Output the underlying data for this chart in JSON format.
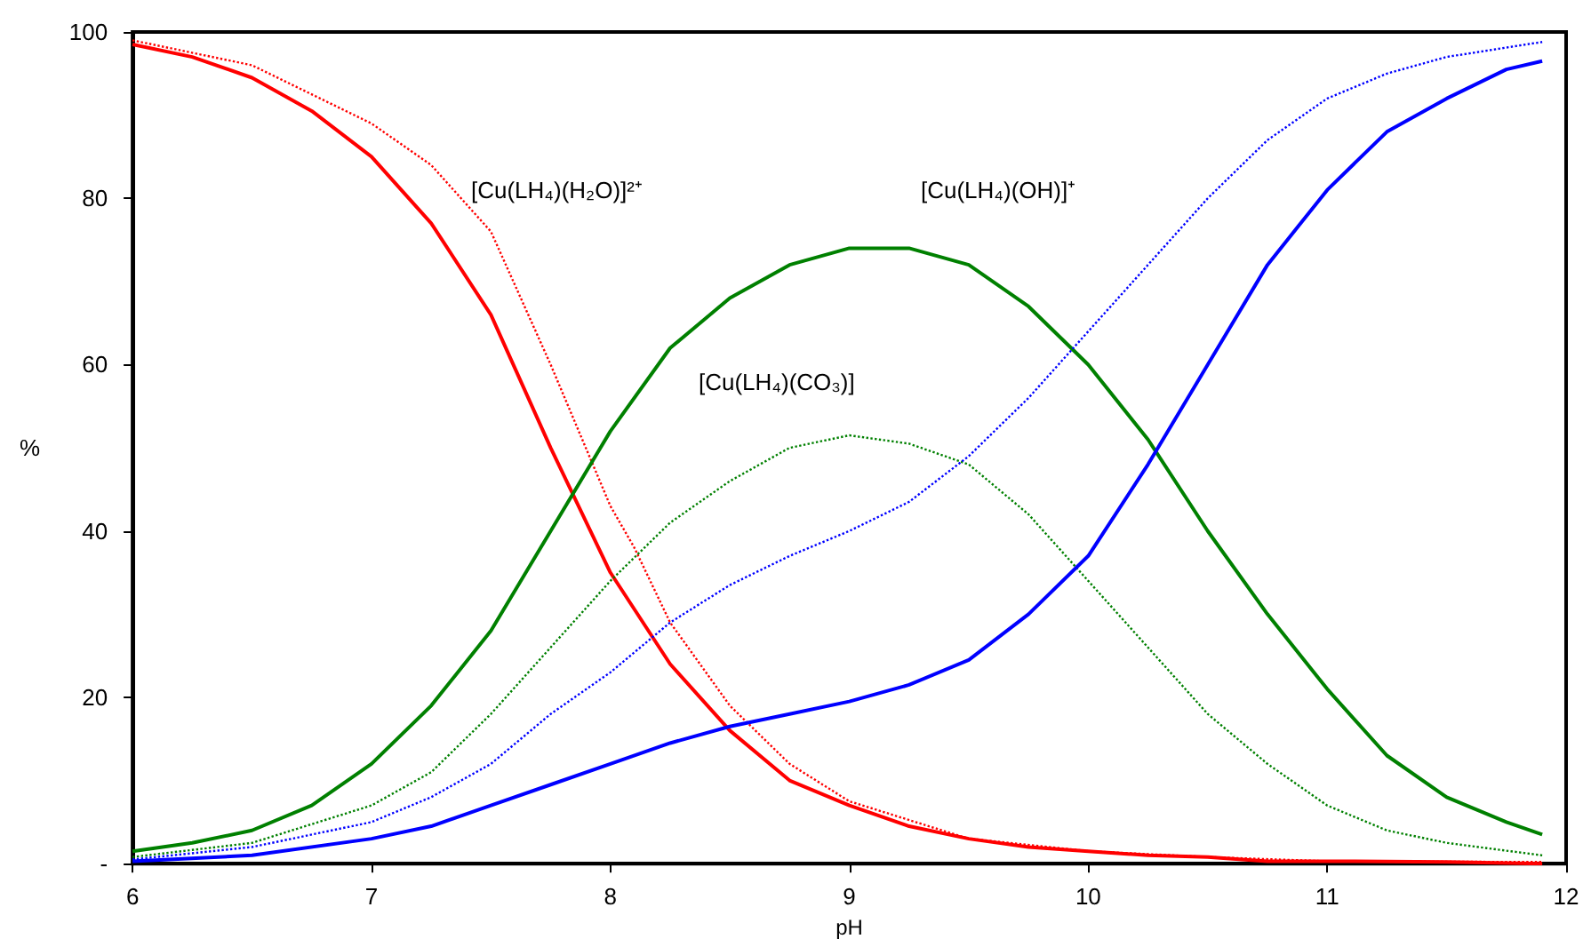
{
  "chart_data": {
    "type": "line",
    "xlabel": "pH",
    "ylabel": "%",
    "xlim": [
      6,
      12
    ],
    "xticks": [
      6,
      7,
      8,
      9,
      10,
      11,
      12
    ],
    "ylim": [
      0,
      100
    ],
    "yticks": [
      {
        "value": 0,
        "label": "-"
      },
      20,
      40,
      60,
      80,
      100
    ],
    "grid": false,
    "marker": "none",
    "series": [
      {
        "color": "#ff0000",
        "line_style": "solid",
        "x": [
          6,
          6.25,
          6.5,
          6.75,
          7,
          7.25,
          7.5,
          7.75,
          8,
          8.25,
          8.5,
          8.75,
          9,
          9.25,
          9.5,
          9.75,
          10,
          10.25,
          10.5,
          10.75,
          11,
          11.5,
          11.9
        ],
        "values": [
          98.5,
          97,
          94.5,
          90.5,
          85,
          77,
          66,
          50,
          35,
          24,
          16,
          10,
          7,
          4.5,
          3,
          2,
          1.5,
          1,
          0.8,
          0.3,
          0.3,
          0.2,
          0
        ]
      },
      {
        "color": "#ff0000",
        "line_style": "dotted",
        "x": [
          6,
          6.5,
          7,
          7.25,
          7.5,
          7.75,
          8,
          8.1,
          8.25,
          8.5,
          8.75,
          9,
          9.5,
          10,
          10.5,
          11,
          11.9
        ],
        "values": [
          99,
          96,
          89,
          84,
          76,
          60,
          43,
          38,
          29,
          19,
          12,
          7.5,
          3,
          1.5,
          0.8,
          0.3,
          0.2
        ]
      },
      {
        "color": "#008000",
        "line_style": "solid",
        "x": [
          6,
          6.25,
          6.5,
          6.75,
          7,
          7.25,
          7.5,
          7.75,
          8,
          8.25,
          8.5,
          8.75,
          9,
          9.25,
          9.5,
          9.75,
          10,
          10.25,
          10.5,
          10.75,
          11,
          11.25,
          11.5,
          11.75,
          11.9
        ],
        "values": [
          1.5,
          2.5,
          4,
          7,
          12,
          19,
          28,
          40,
          52,
          62,
          68,
          72,
          74,
          74,
          72,
          67,
          60,
          51,
          40,
          30,
          21,
          13,
          8,
          5,
          3.5
        ]
      },
      {
        "color": "#008000",
        "line_style": "dotted",
        "x": [
          6,
          6.5,
          7,
          7.25,
          7.5,
          7.75,
          8,
          8.25,
          8.5,
          8.75,
          9,
          9.25,
          9.5,
          9.75,
          10,
          10.25,
          10.5,
          10.75,
          11,
          11.25,
          11.5,
          11.9
        ],
        "values": [
          0.8,
          2.5,
          7,
          11,
          18,
          26,
          34,
          41,
          46,
          50,
          51.5,
          50.5,
          48,
          42,
          34,
          26,
          18,
          12,
          7,
          4,
          2.5,
          1
        ]
      },
      {
        "color": "#0000ff",
        "line_style": "solid",
        "x": [
          6,
          6.5,
          7,
          7.25,
          7.5,
          7.75,
          8,
          8.25,
          8.5,
          8.75,
          9,
          9.25,
          9.5,
          9.75,
          10,
          10.25,
          10.5,
          10.75,
          11,
          11.25,
          11.5,
          11.75,
          11.9
        ],
        "values": [
          0.3,
          1,
          3,
          4.5,
          7,
          9.5,
          12,
          14.5,
          16.5,
          18,
          19.5,
          21.5,
          24.5,
          30,
          37,
          48,
          60,
          72,
          81,
          88,
          92,
          95.5,
          96.5
        ]
      },
      {
        "color": "#0000ff",
        "line_style": "dotted",
        "x": [
          6,
          6.5,
          7,
          7.25,
          7.5,
          7.75,
          8,
          8.25,
          8.5,
          8.75,
          9,
          9.25,
          9.5,
          9.75,
          10,
          10.25,
          10.5,
          10.75,
          11,
          11.25,
          11.5,
          11.9
        ],
        "values": [
          0.5,
          2,
          5,
          8,
          12,
          18,
          23,
          29,
          33.5,
          37,
          40,
          43.5,
          49,
          56,
          64,
          72,
          80,
          87,
          92,
          95,
          97,
          98.8
        ]
      }
    ],
    "annotations": [
      "[Cu(LH₄)(H₂O)]²⁺",
      "[Cu(LH₄)(OH)]⁺",
      "[Cu(LH₄)(CO₃)]"
    ]
  }
}
